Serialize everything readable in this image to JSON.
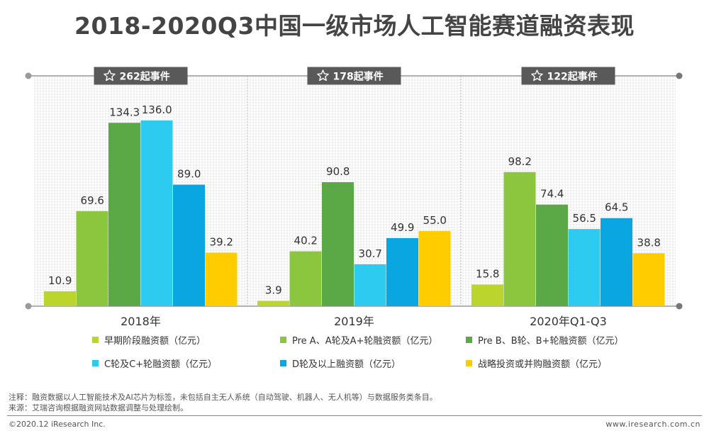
{
  "title": "2018-2020Q3中国一级市场人工智能赛道融资表现",
  "chart_data": {
    "type": "bar",
    "categories": [
      "2018年",
      "2019年",
      "2020年Q1-Q3"
    ],
    "badges": [
      "262起事件",
      "178起事件",
      "122起事件"
    ],
    "ylim": [
      0,
      145
    ],
    "series": [
      {
        "name": "早期阶段融资额（亿元）",
        "color": "#bcd52c",
        "values": [
          10.9,
          3.9,
          15.8
        ]
      },
      {
        "name": "Pre A、A轮及A+轮融资额（亿元）",
        "color": "#8cc63f",
        "values": [
          69.6,
          40.2,
          98.2
        ]
      },
      {
        "name": "Pre B、B轮、B+轮融资额（亿元）",
        "color": "#5aa846",
        "values": [
          134.3,
          90.8,
          74.4
        ]
      },
      {
        "name": "C轮及C+轮融资额（亿元）",
        "color": "#2ecbf0",
        "values": [
          136.0,
          30.7,
          56.5
        ]
      },
      {
        "name": "D轮及以上融资额（亿元）",
        "color": "#0aa6e2",
        "values": [
          89.0,
          49.9,
          64.5
        ]
      },
      {
        "name": "战略投资或并购融资额（亿元）",
        "color": "#ffcc00",
        "values": [
          39.2,
          55.0,
          38.8
        ]
      }
    ]
  },
  "notes": {
    "note": "注释：融资数据以人工智能技术及AI芯片为标签，未包括自主无人系统（自动驾驶、机器人、无人机等）与数据服务类条目。",
    "source": "来源：艾瑞咨询根据融资网站数据调整与处理绘制。"
  },
  "footer": {
    "copyright": "©2020.12 iResearch Inc.",
    "website": "www.iresearch.com.cn"
  }
}
